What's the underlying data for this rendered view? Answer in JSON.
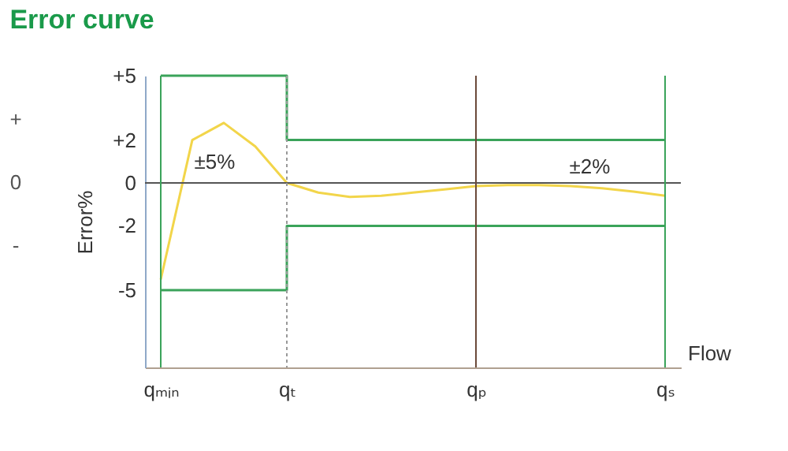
{
  "chart_data": {
    "type": "line",
    "title": "Error curve",
    "xlabel": "Flow",
    "ylabel": "Error%",
    "categories": [
      "qₘᵢₙ",
      null,
      null,
      null,
      "qₜ",
      null,
      null,
      null,
      null,
      null,
      "qₚ",
      null,
      null,
      null,
      null,
      null,
      "qₛ"
    ],
    "ylim": [
      -8.6,
      5
    ],
    "yticks": [
      {
        "value": 5,
        "label": "+5"
      },
      {
        "value": 2,
        "label": "+2"
      },
      0,
      {
        "value": -2,
        "label": "-2"
      },
      {
        "value": -5,
        "label": "-5"
      }
    ],
    "series": [
      {
        "type": "step",
        "color": "#3aa35a",
        "values": [
          5,
          5,
          5,
          5,
          2,
          2,
          2,
          2,
          2,
          2,
          2,
          2,
          2,
          2,
          2,
          2,
          2
        ]
      },
      {
        "type": "step",
        "color": "#3aa35a",
        "values": [
          -5,
          -5,
          -5,
          -5,
          -2,
          -2,
          -2,
          -2,
          -2,
          -2,
          -2,
          -2,
          -2,
          -2,
          -2,
          -2,
          -2
        ]
      },
      {
        "color": "#f2d54a",
        "values": [
          -4.5,
          2,
          2.8,
          1.7,
          0,
          -0.45,
          -0.65,
          -0.6,
          -0.45,
          -0.3,
          -0.15,
          -0.1,
          -0.1,
          -0.15,
          -0.25,
          -0.4,
          -0.6
        ]
      }
    ],
    "ref_lines": [
      {
        "axis": "y",
        "value": 0,
        "color": "#555555"
      },
      {
        "axis": "x",
        "value": "qₘᵢₙ",
        "color": "#3aa35a"
      },
      {
        "axis": "x",
        "value": "qₜ",
        "color": "#999999",
        "line_style": "dotted"
      },
      {
        "axis": "x",
        "value": "qₚ",
        "color": "#6b4a3a"
      },
      {
        "axis": "x",
        "value": "qₛ",
        "color": "#3aa35a"
      }
    ],
    "annotations": [
      "±5%",
      "±2%",
      "+ 0 -"
    ]
  }
}
